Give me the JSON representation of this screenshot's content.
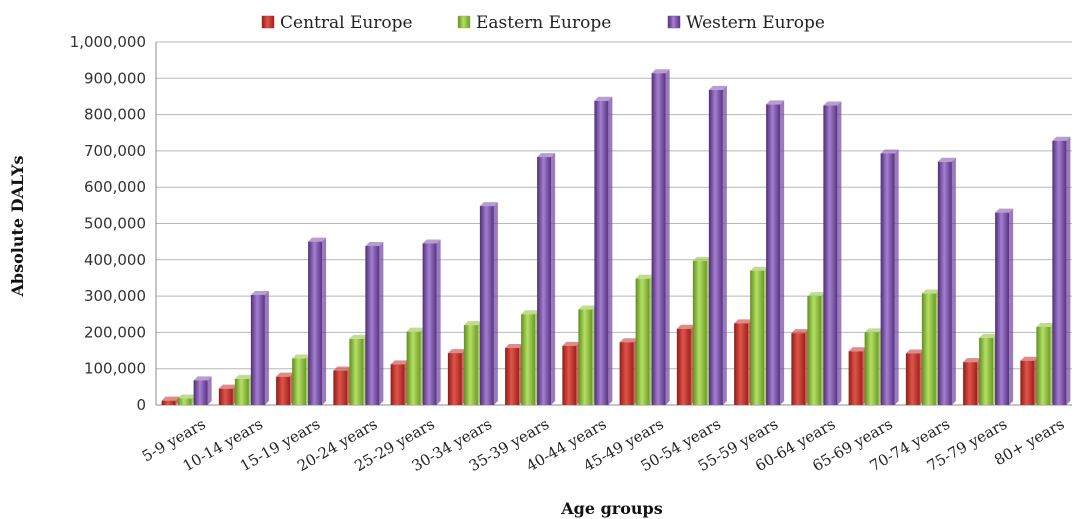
{
  "chart_data": {
    "type": "bar",
    "xlabel": "Age groups",
    "ylabel": "Absolute DALYs",
    "ylim": [
      0,
      1000000
    ],
    "yticks": [
      "0",
      "100,000",
      "200,000",
      "300,000",
      "400,000",
      "500,000",
      "600,000",
      "700,000",
      "800,000",
      "900,000",
      "1,000,000"
    ],
    "grid": true,
    "legend_position": "top",
    "categories": [
      "5-9 years",
      "10-14 years",
      "15-19 years",
      "20-24 years",
      "25-29 years",
      "30-34 years",
      "35-39 years",
      "40-44 years",
      "45-49 years",
      "50-54 years",
      "55-59 years",
      "60-64 years",
      "65-69 years",
      "70-74 years",
      "75-79 years",
      "80+ years"
    ],
    "series": [
      {
        "name": "Central Europe",
        "color": "#c0302a",
        "values": [
          12000,
          45000,
          78000,
          95000,
          112000,
          143000,
          157000,
          163000,
          173000,
          210000,
          225000,
          198000,
          148000,
          142000,
          118000,
          122000
        ]
      },
      {
        "name": "Eastern Europe",
        "color": "#8cbf3a",
        "values": [
          18000,
          72000,
          128000,
          182000,
          202000,
          220000,
          250000,
          263000,
          348000,
          397000,
          370000,
          300000,
          200000,
          307000,
          185000,
          215000
        ]
      },
      {
        "name": "Western Europe",
        "color": "#7a4fa6",
        "values": [
          68000,
          303000,
          450000,
          438000,
          445000,
          548000,
          683000,
          838000,
          914000,
          868000,
          828000,
          825000,
          693000,
          670000,
          530000,
          728000
        ]
      }
    ]
  }
}
